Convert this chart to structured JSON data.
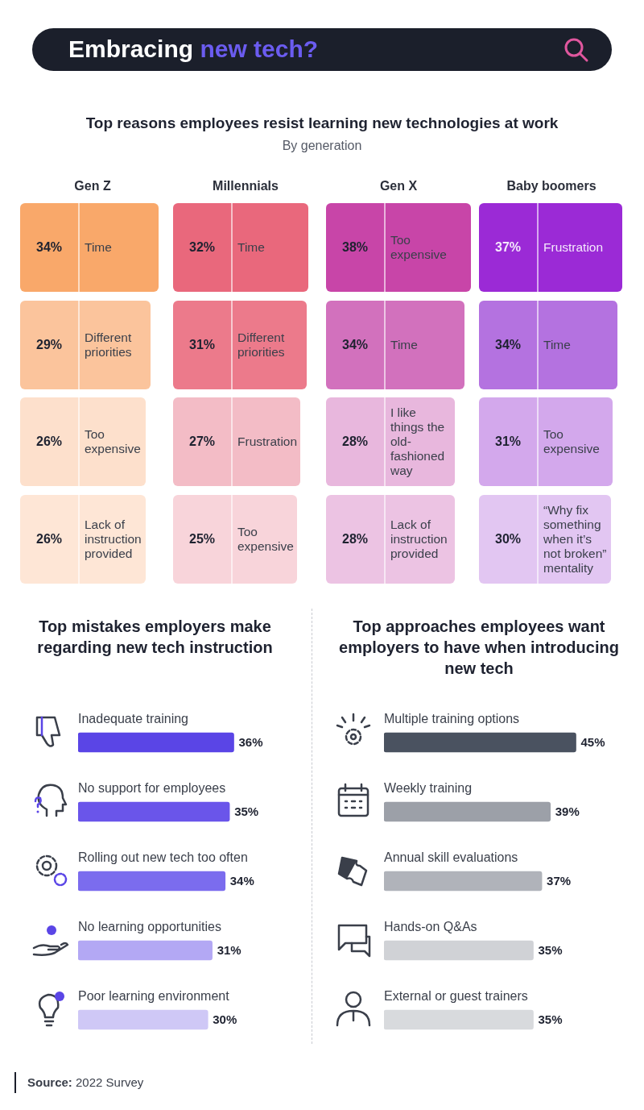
{
  "chart_data": [
    {
      "type": "other",
      "title": "Embracing new tech?",
      "annotations": [
        "Source: 2022 Survey"
      ]
    },
    {
      "type": "other",
      "title": "Top reasons employees resist learning new technologies at work",
      "subtitle": "By generation"
    },
    {
      "type": "other",
      "title": "Gen Z",
      "categories": [
        "Time",
        "Different priorities",
        "Too expensive",
        "Lack of instruction provided"
      ],
      "values": [
        34,
        29,
        26,
        26
      ],
      "value_labels": [
        "34%",
        "29%",
        "26%",
        "26%"
      ],
      "colors": [
        "#f9a86a",
        "#fbc49c",
        "#fde0cc",
        "#fee6d6"
      ]
    },
    {
      "type": "other",
      "title": "Millennials",
      "categories": [
        "Time",
        "Different priorities",
        "Frustration",
        "Too expensive"
      ],
      "values": [
        32,
        31,
        27,
        25
      ],
      "value_labels": [
        "32%",
        "31%",
        "27%",
        "25%"
      ],
      "colors": [
        "#e9687c",
        "#ec7a8b",
        "#f3bcc6",
        "#f8d4da"
      ]
    },
    {
      "type": "other",
      "title": "Gen X",
      "categories": [
        "Too expensive",
        "Time",
        "I like things the old-fashioned way",
        "Lack of instruction provided"
      ],
      "values": [
        38,
        34,
        28,
        28
      ],
      "value_labels": [
        "38%",
        "34%",
        "28%",
        "28%"
      ],
      "colors": [
        "#c845a8",
        "#d271bd",
        "#e8b7dd",
        "#ecc3e3"
      ]
    },
    {
      "type": "other",
      "title": "Baby boomers",
      "categories": [
        "Frustration",
        "Time",
        "Too expensive",
        "“Why fix something when it’s not broken” mentality"
      ],
      "values": [
        37,
        34,
        31,
        30
      ],
      "value_labels": [
        "37%",
        "34%",
        "31%",
        "30%"
      ],
      "colors": [
        "#9b2ad6",
        "#b472e0",
        "#d3a8ec",
        "#e2c6f2"
      ]
    },
    {
      "type": "bar",
      "orientation": "horizontal",
      "title": "Top mistakes employers make regarding new tech instruction",
      "categories": [
        "Inadequate training",
        "No support for employees",
        "Rolling out new tech too often",
        "No learning opportunities",
        "Poor learning environment"
      ],
      "values": [
        36,
        35,
        34,
        31,
        30
      ],
      "value_labels": [
        "36%",
        "35%",
        "34%",
        "31%",
        "30%"
      ],
      "colors": [
        "#5a45e6",
        "#6a55ea",
        "#7b6cee",
        "#b3a8f4",
        "#cfc8f6"
      ]
    },
    {
      "type": "bar",
      "orientation": "horizontal",
      "title": "Top approaches employees want employers to have when introducing new tech",
      "categories": [
        "Multiple training options",
        "Weekly training",
        "Annual skill evaluations",
        "Hands-on Q&As",
        "External or guest trainers"
      ],
      "values": [
        45,
        39,
        37,
        35,
        35
      ],
      "value_labels": [
        "45%",
        "39%",
        "37%",
        "35%",
        "35%"
      ],
      "colors": [
        "#4a5260",
        "#9ca0a8",
        "#b0b3ba",
        "#d0d2d6",
        "#d8dadd"
      ]
    }
  ]
}
